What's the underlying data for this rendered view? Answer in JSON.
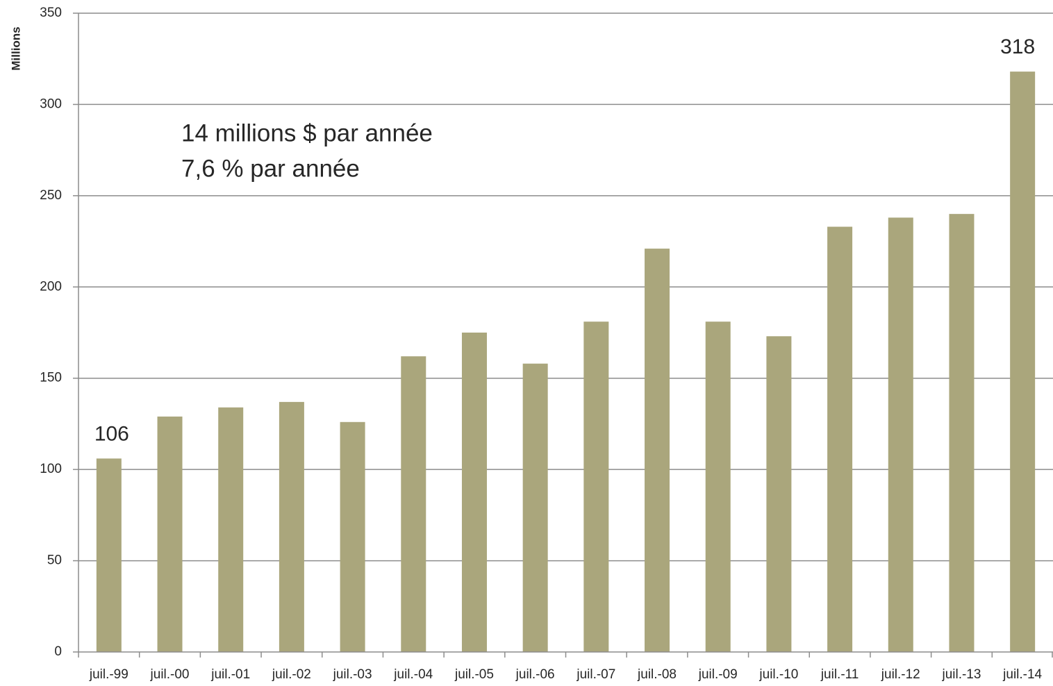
{
  "chart_data": {
    "type": "bar",
    "y_axis_label": "Millions",
    "annotations": [
      "14 millions $ par année",
      "7,6 % par année"
    ],
    "categories": [
      "juil.-99",
      "juil.-00",
      "juil.-01",
      "juil.-02",
      "juil.-03",
      "juil.-04",
      "juil.-05",
      "juil.-06",
      "juil.-07",
      "juil.-08",
      "juil.-09",
      "juil.-10",
      "juil.-11",
      "juil.-12",
      "juil.-13",
      "juil.-14"
    ],
    "values": [
      106,
      129,
      134,
      137,
      126,
      162,
      175,
      158,
      181,
      221,
      181,
      173,
      233,
      238,
      240,
      318
    ],
    "value_labels": [
      "106",
      null,
      null,
      null,
      null,
      null,
      null,
      null,
      null,
      null,
      null,
      null,
      null,
      null,
      null,
      "318"
    ],
    "color": "#aaa67c",
    "ylim": [
      0,
      350
    ],
    "yticks": [
      0,
      50,
      100,
      150,
      200,
      250,
      300,
      350
    ],
    "grid": true
  }
}
